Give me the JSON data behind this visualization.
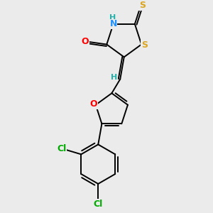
{
  "background_color": "#ebebeb",
  "bond_color": "#000000",
  "atom_colors": {
    "N": "#1E90FF",
    "O": "#FF0000",
    "S_thioxo": "#DAA520",
    "S_ring": "#DAA520",
    "Cl": "#00AA00",
    "H": "#20B2AA",
    "C": "#000000"
  },
  "figsize": [
    3.0,
    3.0
  ],
  "dpi": 100
}
